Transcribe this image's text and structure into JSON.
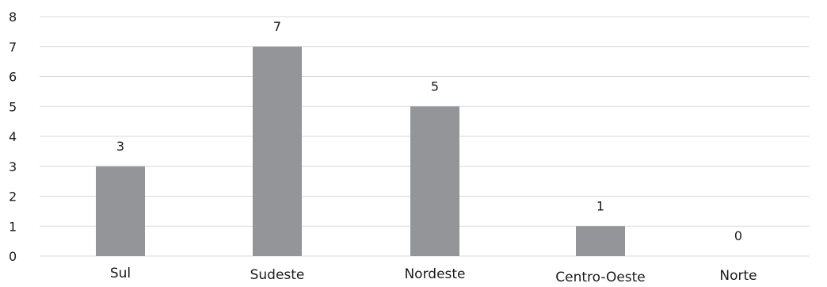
{
  "chart_data": {
    "type": "bar",
    "categories": [
      "Sul",
      "Sudeste",
      "Nordeste",
      "Centro-Oeste",
      "Norte"
    ],
    "values": [
      3,
      7,
      5,
      1,
      0
    ],
    "ylim": [
      0,
      8
    ],
    "yticks": [
      "0",
      "1",
      "2",
      "3",
      "4",
      "5",
      "6",
      "7",
      "8"
    ],
    "data_labels": [
      "3",
      "7",
      "5",
      "1",
      "0"
    ],
    "grid": true,
    "colors": {
      "bar": "#939598",
      "grid": "#d9d9d9",
      "text": "#1a1a1a"
    }
  }
}
